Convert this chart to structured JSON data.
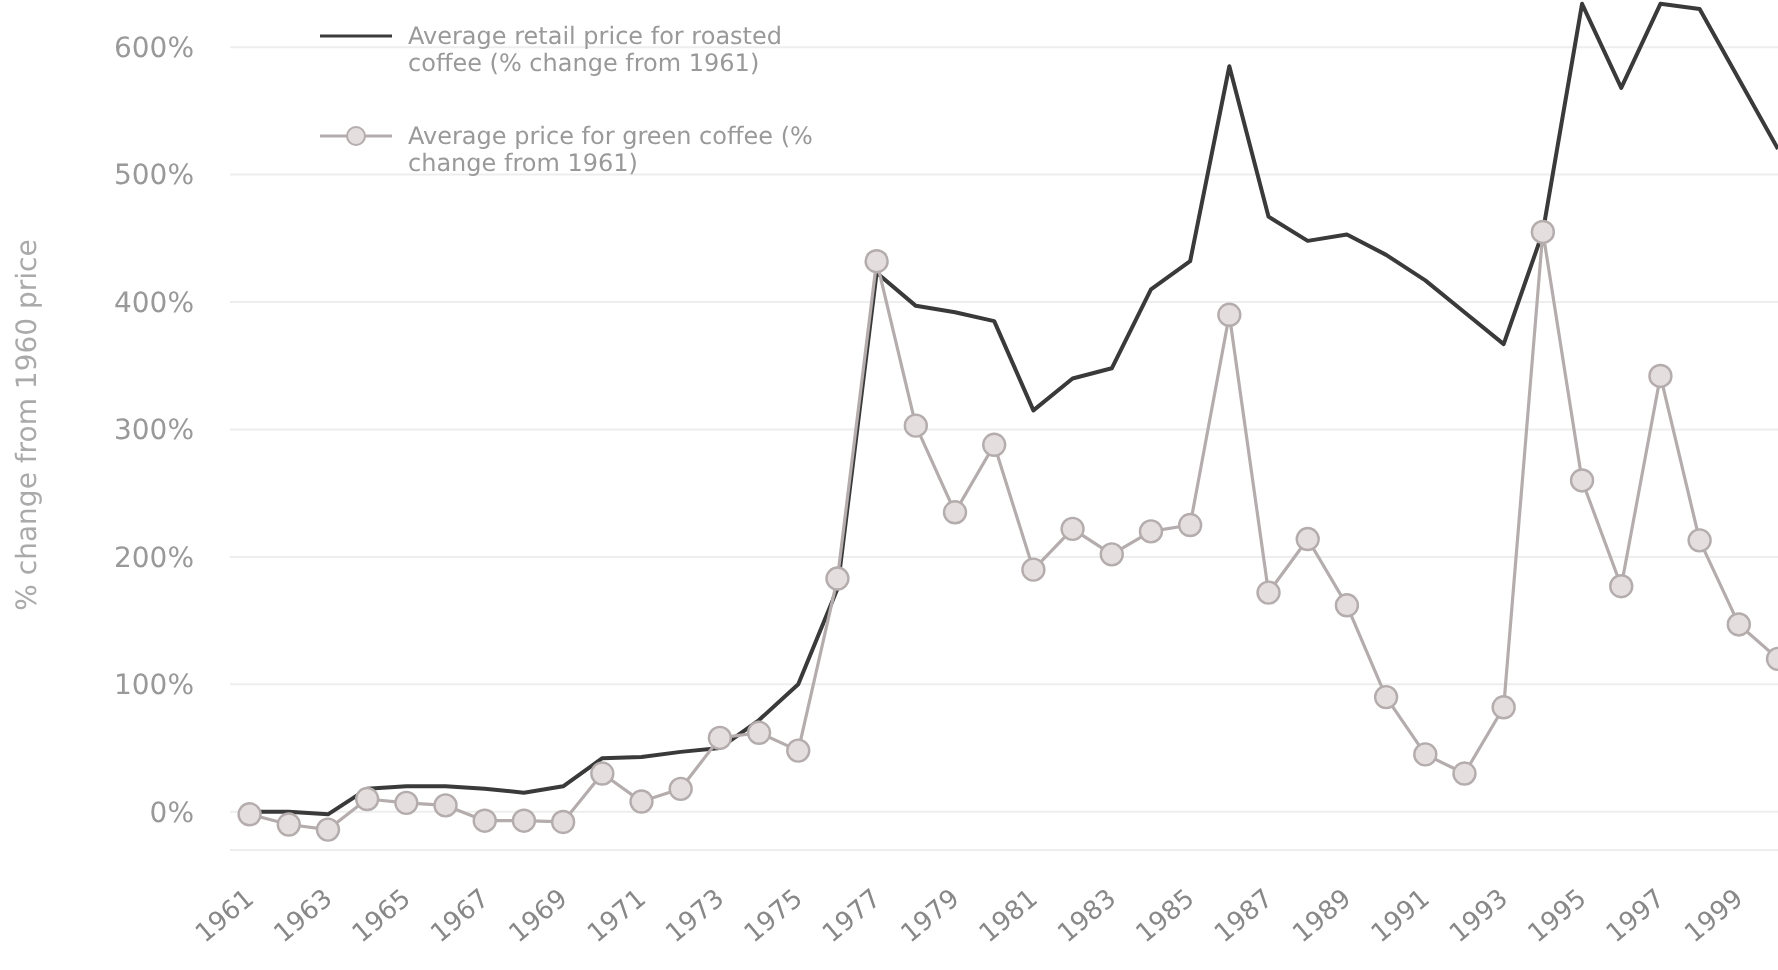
{
  "chart_data": {
    "type": "line",
    "ylabel": "% change from 1960 price",
    "x": [
      1961,
      1962,
      1963,
      1964,
      1965,
      1966,
      1967,
      1968,
      1969,
      1970,
      1971,
      1972,
      1973,
      1974,
      1975,
      1976,
      1977,
      1978,
      1979,
      1980,
      1981,
      1982,
      1983,
      1984,
      1985,
      1986,
      1987,
      1988,
      1989,
      1990,
      1991,
      1992,
      1993,
      1994,
      1995,
      1996,
      1997,
      1998,
      1999,
      2000
    ],
    "series": [
      {
        "name": "Average retail price for roasted coffee (% change from 1961)",
        "color": "#3a3a3a",
        "marker": "none",
        "values": [
          0,
          0,
          -2,
          18,
          20,
          20,
          18,
          15,
          20,
          42,
          43,
          47,
          50,
          72,
          100,
          175,
          423,
          397,
          392,
          385,
          315,
          340,
          348,
          410,
          432,
          585,
          467,
          448,
          453,
          437,
          417,
          392,
          367,
          455,
          634,
          568,
          634,
          630,
          575,
          520
        ]
      },
      {
        "name": "Average price for green coffee (% change from 1961)",
        "color": "#b5adad",
        "marker": "circle",
        "values": [
          -2,
          -10,
          -14,
          10,
          7,
          5,
          -7,
          -7,
          -8,
          30,
          8,
          18,
          58,
          62,
          48,
          183,
          432,
          303,
          235,
          288,
          190,
          222,
          202,
          220,
          225,
          390,
          172,
          214,
          162,
          90,
          45,
          30,
          82,
          455,
          260,
          177,
          342,
          213,
          147,
          120
        ]
      }
    ],
    "xlim": [
      1960.5,
      2000
    ],
    "ylim": [
      -30,
      637
    ],
    "xticks": [
      1961,
      1963,
      1965,
      1967,
      1969,
      1971,
      1973,
      1975,
      1977,
      1979,
      1981,
      1983,
      1985,
      1987,
      1989,
      1991,
      1993,
      1995,
      1997,
      1999
    ],
    "yticks": [
      {
        "value": 0,
        "label": "0%"
      },
      {
        "value": 100,
        "label": "100%"
      },
      {
        "value": 200,
        "label": "200%"
      },
      {
        "value": 300,
        "label": "300%"
      },
      {
        "value": 400,
        "label": "400%"
      },
      {
        "value": 500,
        "label": "500%"
      },
      {
        "value": 600,
        "label": "600%"
      }
    ],
    "grid": "y",
    "legend": "top left",
    "line_style": "solid"
  }
}
